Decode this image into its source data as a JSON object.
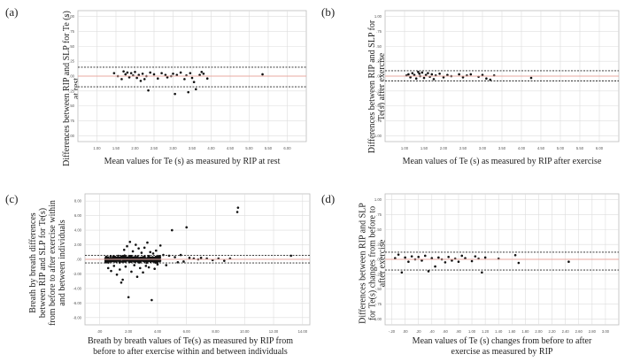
{
  "colors": {
    "points": "#111111",
    "mean_line": "#e8a8a0",
    "limit_line": "#222222",
    "grid": "#dddddd",
    "frame": "#bbbbbb"
  },
  "chart_data": [
    {
      "id": "a",
      "panel_label": "(a)",
      "type": "scatter",
      "ylabel_lines": [
        "Differences between RIP and SLP for Te (s)",
        "at rest"
      ],
      "xlabel_lines": [
        "Mean values for Te (s) as measured by RIP at rest"
      ],
      "xlim": [
        0.5,
        6.5
      ],
      "ylim": [
        -1.1,
        1.1
      ],
      "x_ticks": [
        1.0,
        1.5,
        2.0,
        2.5,
        3.0,
        3.5,
        4.0,
        4.5,
        5.0,
        5.5,
        6.0
      ],
      "x_tick_labels": [
        "1.00",
        "1.50",
        "2.00",
        "2.50",
        "3.00",
        "3.50",
        "4.00",
        "4.50",
        "5.00",
        "5.50",
        "6.00"
      ],
      "y_ticks": [
        -1.0,
        -0.75,
        -0.5,
        -0.25,
        0.0,
        0.25,
        0.5,
        0.75,
        1.0
      ],
      "y_tick_labels": [
        "-1.00",
        "-.75",
        "-.50",
        "-.25",
        ".00",
        ".25",
        ".50",
        ".75",
        "1.00"
      ],
      "mean_line": 0.0,
      "limits": [
        0.15,
        -0.18
      ],
      "points": [
        [
          1.45,
          0.05
        ],
        [
          1.55,
          0.0
        ],
        [
          1.65,
          -0.05
        ],
        [
          1.7,
          0.08
        ],
        [
          1.75,
          0.03
        ],
        [
          1.8,
          0.06
        ],
        [
          1.85,
          -0.02
        ],
        [
          1.9,
          0.05
        ],
        [
          1.95,
          0.01
        ],
        [
          2.0,
          0.07
        ],
        [
          2.05,
          -0.03
        ],
        [
          2.1,
          0.02
        ],
        [
          2.15,
          -0.08
        ],
        [
          2.2,
          0.04
        ],
        [
          2.25,
          -0.05
        ],
        [
          2.3,
          0.0
        ],
        [
          2.35,
          -0.24
        ],
        [
          2.4,
          0.06
        ],
        [
          2.5,
          0.03
        ],
        [
          2.6,
          -0.04
        ],
        [
          2.7,
          0.05
        ],
        [
          2.8,
          0.02
        ],
        [
          2.85,
          -0.02
        ],
        [
          2.95,
          0.0
        ],
        [
          3.0,
          0.04
        ],
        [
          3.05,
          -0.3
        ],
        [
          3.1,
          0.02
        ],
        [
          3.2,
          0.06
        ],
        [
          3.3,
          -0.05
        ],
        [
          3.35,
          0.01
        ],
        [
          3.4,
          -0.27
        ],
        [
          3.45,
          0.05
        ],
        [
          3.5,
          -0.03
        ],
        [
          3.55,
          -0.1
        ],
        [
          3.6,
          -0.22
        ],
        [
          3.7,
          0.02
        ],
        [
          3.75,
          0.07
        ],
        [
          3.8,
          0.04
        ],
        [
          3.9,
          -0.04
        ],
        [
          5.35,
          0.03
        ]
      ]
    },
    {
      "id": "b",
      "panel_label": "(b)",
      "type": "scatter",
      "ylabel_lines": [
        "Differences between RIP and SLP for",
        "Te(s) after exercise"
      ],
      "xlabel_lines": [
        "Mean values of Te (s) as measured by RIP after exercise"
      ],
      "xlim": [
        0.5,
        6.5
      ],
      "ylim": [
        -1.1,
        1.1
      ],
      "x_ticks": [
        1.0,
        1.5,
        2.0,
        2.5,
        3.0,
        3.5,
        4.0,
        4.5,
        5.0,
        5.5,
        6.0
      ],
      "x_tick_labels": [
        "1.00",
        "1.50",
        "2.00",
        "2.50",
        "3.00",
        "3.50",
        "4.00",
        "4.50",
        "5.00",
        "5.50",
        "6.00"
      ],
      "y_ticks": [
        -1.0,
        -0.75,
        -0.5,
        -0.25,
        0.0,
        0.25,
        0.5,
        0.75,
        1.0
      ],
      "y_tick_labels": [
        "-1.00",
        "-.75",
        "-.50",
        "-.25",
        ".00",
        ".25",
        ".50",
        ".75",
        "1.00"
      ],
      "mean_line": 0.0,
      "limits": [
        0.09,
        -0.08
      ],
      "points": [
        [
          1.05,
          0.01
        ],
        [
          1.1,
          0.03
        ],
        [
          1.15,
          -0.02
        ],
        [
          1.2,
          0.05
        ],
        [
          1.25,
          0.02
        ],
        [
          1.3,
          -0.04
        ],
        [
          1.35,
          0.07
        ],
        [
          1.38,
          0.04
        ],
        [
          1.4,
          0.0
        ],
        [
          1.45,
          0.06
        ],
        [
          1.5,
          -0.03
        ],
        [
          1.55,
          0.02
        ],
        [
          1.6,
          0.05
        ],
        [
          1.65,
          -0.01
        ],
        [
          1.7,
          0.03
        ],
        [
          1.75,
          -0.05
        ],
        [
          1.8,
          0.01
        ],
        [
          1.9,
          0.04
        ],
        [
          2.0,
          -0.02
        ],
        [
          2.1,
          0.02
        ],
        [
          2.2,
          0.0
        ],
        [
          2.4,
          0.03
        ],
        [
          2.5,
          -0.02
        ],
        [
          2.6,
          0.01
        ],
        [
          2.7,
          0.03
        ],
        [
          2.9,
          -0.01
        ],
        [
          3.0,
          0.02
        ],
        [
          3.1,
          -0.04
        ],
        [
          3.2,
          -0.06
        ],
        [
          3.3,
          0.01
        ],
        [
          4.25,
          -0.03
        ]
      ]
    },
    {
      "id": "c",
      "panel_label": "(c)",
      "type": "scatter",
      "ylabel_lines": [
        "Breath by breath differences",
        "between RIP and SLP for Te(s)",
        "from before to after exercise within",
        "and between individuals"
      ],
      "xlabel_lines": [
        "Breath by breath values of Te(s) as measured by RIP from",
        "before to after exercise within and between individuals"
      ],
      "xlim": [
        -1,
        14.5
      ],
      "ylim": [
        -9,
        9
      ],
      "x_ticks": [
        0,
        2,
        4,
        6,
        8,
        10,
        12,
        14
      ],
      "x_tick_labels": [
        ".00",
        "2.00",
        "4.00",
        "6.00",
        "8.00",
        "10.00",
        "12.00",
        "14.00"
      ],
      "y_ticks": [
        -8,
        -6,
        -4,
        -2,
        0,
        2,
        4,
        6,
        8
      ],
      "y_tick_labels": [
        "-8.00",
        "-6.00",
        "-4.00",
        "-2.00",
        ".00",
        "2.00",
        "4.00",
        "6.00",
        "8.00"
      ],
      "mean_line": 0.0,
      "limits": [
        0.55,
        -0.5
      ],
      "dense_cloud": {
        "x_range": [
          0.4,
          4.2
        ],
        "y_range": [
          -0.7,
          0.7
        ],
        "count": 520
      },
      "points": [
        [
          0.6,
          -1.2
        ],
        [
          0.8,
          -1.6
        ],
        [
          1.0,
          -0.9
        ],
        [
          1.2,
          -2.1
        ],
        [
          1.4,
          -1.4
        ],
        [
          1.5,
          -3.2
        ],
        [
          1.6,
          -2.8
        ],
        [
          1.7,
          1.3
        ],
        [
          1.8,
          -1.0
        ],
        [
          1.9,
          1.8
        ],
        [
          2.0,
          -5.2
        ],
        [
          2.1,
          2.4
        ],
        [
          2.2,
          -1.7
        ],
        [
          2.3,
          1.1
        ],
        [
          2.4,
          -0.8
        ],
        [
          2.5,
          2.0
        ],
        [
          2.6,
          -2.4
        ],
        [
          2.7,
          1.5
        ],
        [
          2.8,
          -1.2
        ],
        [
          2.9,
          0.9
        ],
        [
          3.0,
          -1.8
        ],
        [
          3.1,
          1.6
        ],
        [
          3.2,
          -0.9
        ],
        [
          3.3,
          2.3
        ],
        [
          3.4,
          -1.1
        ],
        [
          3.5,
          1.0
        ],
        [
          3.6,
          -5.6
        ],
        [
          3.7,
          0.8
        ],
        [
          3.8,
          -1.3
        ],
        [
          3.9,
          1.2
        ],
        [
          4.0,
          -0.7
        ],
        [
          4.2,
          1.9
        ],
        [
          4.4,
          0.6
        ],
        [
          4.6,
          -0.8
        ],
        [
          4.8,
          0.5
        ],
        [
          5.0,
          4.0
        ],
        [
          5.2,
          0.3
        ],
        [
          5.4,
          -0.4
        ],
        [
          5.6,
          0.6
        ],
        [
          5.8,
          -0.3
        ],
        [
          6.0,
          4.4
        ],
        [
          6.2,
          0.2
        ],
        [
          6.5,
          0.1
        ],
        [
          6.8,
          0.0
        ],
        [
          7.0,
          0.2
        ],
        [
          7.4,
          0.1
        ],
        [
          7.8,
          -0.1
        ],
        [
          8.2,
          0.1
        ],
        [
          8.6,
          -0.2
        ],
        [
          9.0,
          0.1
        ],
        [
          9.5,
          6.5
        ],
        [
          9.55,
          7.1
        ],
        [
          13.2,
          0.5
        ]
      ]
    },
    {
      "id": "d",
      "panel_label": "(d)",
      "type": "scatter",
      "ylabel_lines": [
        "Differences between RIP and SLP",
        "for Te(s) changes from before to",
        "after exercise"
      ],
      "xlabel_lines": [
        "Mean values of Te (s) changes from before to after",
        "exercise as measured by RIP"
      ],
      "xlim": [
        -0.3,
        3.2
      ],
      "ylim": [
        -1.1,
        1.1
      ],
      "x_ticks": [
        -0.2,
        0.0,
        0.2,
        0.4,
        0.6,
        0.8,
        1.0,
        1.2,
        1.4,
        1.6,
        1.8,
        2.0,
        2.2,
        2.4,
        2.6,
        2.8,
        3.0
      ],
      "x_tick_labels": [
        "-.20",
        ".00",
        ".20",
        ".40",
        ".60",
        ".80",
        "1.00",
        "1.20",
        "1.40",
        "1.60",
        "1.80",
        "2.00",
        "2.20",
        "2.40",
        "2.60",
        "2.80",
        "3.00"
      ],
      "y_ticks": [
        -1.0,
        -0.75,
        -0.5,
        -0.25,
        0.0,
        0.25,
        0.5,
        0.75,
        1.0
      ],
      "y_tick_labels": [
        "-1.00",
        "-.75",
        "-.50",
        "-.25",
        ".00",
        ".25",
        ".50",
        ".75",
        "1.00"
      ],
      "mean_line": 0.0,
      "limits": [
        0.12,
        -0.18
      ],
      "points": [
        [
          -0.15,
          0.02
        ],
        [
          -0.1,
          0.08
        ],
        [
          -0.05,
          -0.22
        ],
        [
          0.0,
          0.03
        ],
        [
          0.05,
          -0.04
        ],
        [
          0.1,
          0.05
        ],
        [
          0.15,
          0.0
        ],
        [
          0.2,
          0.04
        ],
        [
          0.25,
          -0.02
        ],
        [
          0.3,
          0.06
        ],
        [
          0.35,
          -0.2
        ],
        [
          0.4,
          0.02
        ],
        [
          0.45,
          -0.12
        ],
        [
          0.5,
          0.03
        ],
        [
          0.55,
          0.0
        ],
        [
          0.6,
          -0.05
        ],
        [
          0.65,
          0.04
        ],
        [
          0.7,
          -0.02
        ],
        [
          0.75,
          0.01
        ],
        [
          0.8,
          -0.04
        ],
        [
          0.85,
          0.06
        ],
        [
          0.9,
          0.02
        ],
        [
          1.0,
          -0.03
        ],
        [
          1.05,
          0.05
        ],
        [
          1.1,
          0.01
        ],
        [
          1.15,
          -0.22
        ],
        [
          1.2,
          0.03
        ],
        [
          1.4,
          0.01
        ],
        [
          1.65,
          0.07
        ],
        [
          1.7,
          -0.06
        ],
        [
          2.45,
          -0.04
        ]
      ]
    }
  ]
}
